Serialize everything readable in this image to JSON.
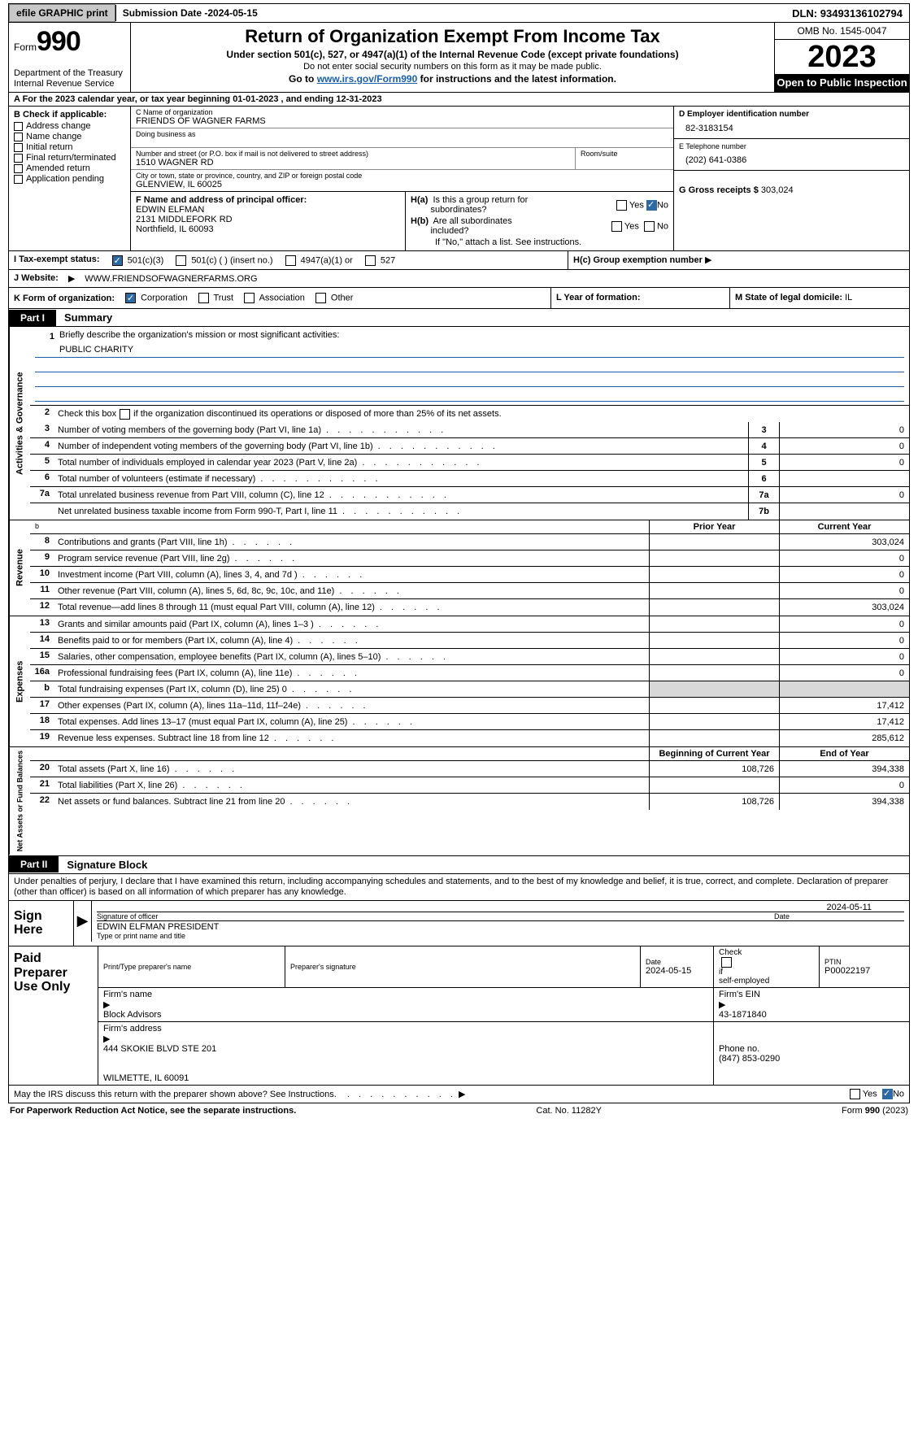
{
  "topbar": {
    "efile_btn": "efile GRAPHIC print",
    "submission_label": "Submission Date - ",
    "submission_date": "2024-05-15",
    "dln_label": "DLN: ",
    "dln": "93493136102794"
  },
  "header": {
    "form_word": "Form",
    "form_number": "990",
    "dept": "Department of the Treasury\nInternal Revenue Service",
    "title": "Return of Organization Exempt From Income Tax",
    "subtitle": "Under section 501(c), 527, or 4947(a)(1) of the Internal Revenue Code (except private foundations)",
    "ssn_note": "Do not enter social security numbers on this form as it may be made public.",
    "goto": "Go to ",
    "goto_link": "www.irs.gov/Form990",
    "goto_tail": " for instructions and the latest information.",
    "omb": "OMB No. 1545-0047",
    "year": "2023",
    "inspection": "Open to Public Inspection"
  },
  "lineA": "A   For the 2023 calendar year, or tax year beginning 01-01-2023    , and ending 12-31-2023",
  "sectionB": {
    "header": "B Check if applicable:",
    "items": [
      "Address change",
      "Name change",
      "Initial return",
      "Final return/terminated",
      "Amended return",
      "Application pending"
    ]
  },
  "sectionC": {
    "name_label": "C Name of organization",
    "name": "FRIENDS OF WAGNER FARMS",
    "dba_label": "Doing business as",
    "dba": "",
    "addr_label": "Number and street (or P.O. box if mail is not delivered to street address)",
    "addr": "1510 WAGNER RD",
    "room_label": "Room/suite",
    "room": "",
    "city_label": "City or town, state or province, country, and ZIP or foreign postal code",
    "city": "GLENVIEW, IL  60025"
  },
  "sectionD": {
    "label": "D Employer identification number",
    "value": "82-3183154"
  },
  "sectionE": {
    "label": "E Telephone number",
    "value": "(202) 641-0386"
  },
  "sectionG": {
    "label": "G Gross receipts $ ",
    "value": "303,024"
  },
  "sectionF": {
    "label": "F  Name and address of principal officer:",
    "name": "EDWIN ELFMAN",
    "addr1": "2131 MIDDLEFORK RD",
    "addr2": "Northfield, IL  60093"
  },
  "sectionH": {
    "ha_label": "H(a)  Is this a group return for subordinates?",
    "hb_label": "H(b)  Are all subordinates included?",
    "hb_note": "If \"No,\" attach a list. See instructions.",
    "hc_label": "H(c)  Group exemption number ",
    "yes": "Yes",
    "no": "No"
  },
  "sectionI": {
    "label": "I     Tax-exempt status:",
    "opt1": "501(c)(3)",
    "opt2": "501(c) (  ) (insert no.)",
    "opt3": "4947(a)(1) or",
    "opt4": "527"
  },
  "sectionJ": {
    "label": "J     Website: ",
    "value": "WWW.FRIENDSOFWAGNERFARMS.ORG"
  },
  "sectionK": {
    "label": "K Form of organization:",
    "opts": [
      "Corporation",
      "Trust",
      "Association",
      "Other"
    ]
  },
  "sectionL": {
    "label": "L Year of formation:",
    "value": ""
  },
  "sectionM": {
    "label": "M State of legal domicile: ",
    "value": "IL"
  },
  "partI": {
    "tab": "Part I",
    "title": "Summary"
  },
  "summary": {
    "side_ag": "Activities & Governance",
    "side_rev": "Revenue",
    "side_exp": "Expenses",
    "side_net": "Net Assets or Fund Balances",
    "line1_label": "Briefly describe the organization's mission or most significant activities:",
    "line1_value": "PUBLIC CHARITY",
    "line2": "Check this box          if the organization discontinued its operations or disposed of more than 25% of its net assets.",
    "rows_ag": [
      {
        "n": "3",
        "text": "Number of voting members of the governing body (Part VI, line 1a)",
        "box": "3",
        "val": "0"
      },
      {
        "n": "4",
        "text": "Number of independent voting members of the governing body (Part VI, line 1b)",
        "box": "4",
        "val": "0"
      },
      {
        "n": "5",
        "text": "Total number of individuals employed in calendar year 2023 (Part V, line 2a)",
        "box": "5",
        "val": "0"
      },
      {
        "n": "6",
        "text": "Total number of volunteers (estimate if necessary)",
        "box": "6",
        "val": ""
      },
      {
        "n": "7a",
        "text": "Total unrelated business revenue from Part VIII, column (C), line 12",
        "box": "7a",
        "val": "0"
      },
      {
        "n": "",
        "text": "Net unrelated business taxable income from Form 990-T, Part I, line 11",
        "box": "7b",
        "val": ""
      }
    ],
    "col_prior": "Prior Year",
    "col_current": "Current Year",
    "rows_rev": [
      {
        "n": "8",
        "text": "Contributions and grants (Part VIII, line 1h)",
        "prior": "",
        "cur": "303,024"
      },
      {
        "n": "9",
        "text": "Program service revenue (Part VIII, line 2g)",
        "prior": "",
        "cur": "0"
      },
      {
        "n": "10",
        "text": "Investment income (Part VIII, column (A), lines 3, 4, and 7d )",
        "prior": "",
        "cur": "0"
      },
      {
        "n": "11",
        "text": "Other revenue (Part VIII, column (A), lines 5, 6d, 8c, 9c, 10c, and 11e)",
        "prior": "",
        "cur": "0"
      },
      {
        "n": "12",
        "text": "Total revenue—add lines 8 through 11 (must equal Part VIII, column (A), line 12)",
        "prior": "",
        "cur": "303,024"
      }
    ],
    "rows_exp": [
      {
        "n": "13",
        "text": "Grants and similar amounts paid (Part IX, column (A), lines 1–3 )",
        "prior": "",
        "cur": "0"
      },
      {
        "n": "14",
        "text": "Benefits paid to or for members (Part IX, column (A), line 4)",
        "prior": "",
        "cur": "0"
      },
      {
        "n": "15",
        "text": "Salaries, other compensation, employee benefits (Part IX, column (A), lines 5–10)",
        "prior": "",
        "cur": "0"
      },
      {
        "n": "16a",
        "text": "Professional fundraising fees (Part IX, column (A), line 11e)",
        "prior": "",
        "cur": "0"
      },
      {
        "n": "b",
        "text": "Total fundraising expenses (Part IX, column (D), line 25) 0",
        "prior": "shade",
        "cur": "shade"
      },
      {
        "n": "17",
        "text": "Other expenses (Part IX, column (A), lines 11a–11d, 11f–24e)",
        "prior": "",
        "cur": "17,412"
      },
      {
        "n": "18",
        "text": "Total expenses. Add lines 13–17 (must equal Part IX, column (A), line 25)",
        "prior": "",
        "cur": "17,412"
      },
      {
        "n": "19",
        "text": "Revenue less expenses. Subtract line 18 from line 12",
        "prior": "",
        "cur": "285,612"
      }
    ],
    "col_begin": "Beginning of Current Year",
    "col_end": "End of Year",
    "rows_net": [
      {
        "n": "20",
        "text": "Total assets (Part X, line 16)",
        "prior": "108,726",
        "cur": "394,338"
      },
      {
        "n": "21",
        "text": "Total liabilities (Part X, line 26)",
        "prior": "",
        "cur": "0"
      },
      {
        "n": "22",
        "text": "Net assets or fund balances. Subtract line 21 from line 20",
        "prior": "108,726",
        "cur": "394,338"
      }
    ]
  },
  "partII": {
    "tab": "Part II",
    "title": "Signature Block"
  },
  "declaration": "Under penalties of perjury, I declare that I have examined this return, including accompanying schedules and statements, and to the best of my knowledge and belief, it is true, correct, and complete. Declaration of preparer (other than officer) is based on all information of which preparer has any knowledge.",
  "sign": {
    "left": "Sign Here",
    "sig_label": "Signature of officer",
    "sig_date": "2024-05-11",
    "date_label": "Date",
    "name_title": "EDWIN ELFMAN  PRESIDENT",
    "name_title_label": "Type or print name and title"
  },
  "preparer": {
    "left": "Paid Preparer Use Only",
    "name_label": "Print/Type preparer's name",
    "name": "",
    "sig_label": "Preparer's signature",
    "date_label": "Date",
    "date": "2024-05-15",
    "check_label": "Check          if self-employed",
    "ptin_label": "PTIN",
    "ptin": "P00022197",
    "firm_name_label": "Firm's name   ",
    "firm_name": "Block Advisors",
    "firm_ein_label": "Firm's EIN  ",
    "firm_ein": "43-1871840",
    "firm_addr_label": "Firm's address ",
    "firm_addr1": "444 SKOKIE BLVD STE 201",
    "firm_addr2": "WILMETTE, IL  60091",
    "phone_label": "Phone no. ",
    "phone": "(847) 853-0290"
  },
  "discuss": {
    "text": "May the IRS discuss this return with the preparer shown above? See Instructions.",
    "yes": "Yes",
    "no": "No"
  },
  "footer": {
    "left": "For Paperwork Reduction Act Notice, see the separate instructions.",
    "center": "Cat. No. 11282Y",
    "right_pre": "Form ",
    "right_bold": "990",
    "right_post": " (2023)"
  }
}
